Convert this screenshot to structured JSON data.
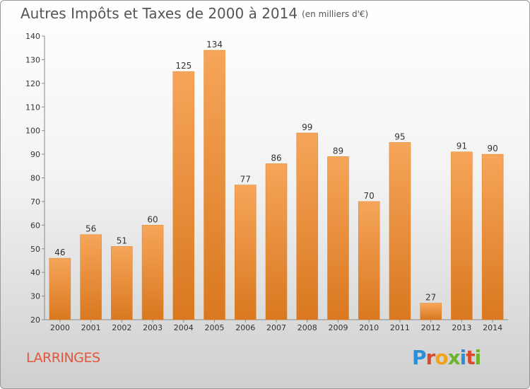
{
  "header": {
    "title": "Autres Impôts et Taxes de 2000 à 2014",
    "unit": "(en milliers d'€)"
  },
  "footer": {
    "commune": "LARRINGES",
    "logo": "Proxiti"
  },
  "colors": {
    "bar_top": "#f6a55a",
    "bar_bottom": "#d9781f",
    "commune_text": "#e2563b",
    "logo_letters": [
      "#2a8fd6",
      "#d94a2a",
      "#f2a21b",
      "#6ab42e",
      "#2a8fd6",
      "#d94a2a",
      "#6ab42e"
    ]
  },
  "chart_data": {
    "type": "bar",
    "categories": [
      "2000",
      "2001",
      "2002",
      "2003",
      "2004",
      "2005",
      "2006",
      "2007",
      "2008",
      "2009",
      "2010",
      "2011",
      "2012",
      "2013",
      "2014"
    ],
    "values": [
      46,
      56,
      51,
      60,
      125,
      134,
      77,
      86,
      99,
      89,
      70,
      95,
      27,
      91,
      90
    ],
    "ylim": [
      20,
      140
    ],
    "yticks": [
      20,
      30,
      40,
      50,
      60,
      70,
      80,
      90,
      100,
      110,
      120,
      130,
      140
    ],
    "grid": false,
    "data_labels": true
  }
}
